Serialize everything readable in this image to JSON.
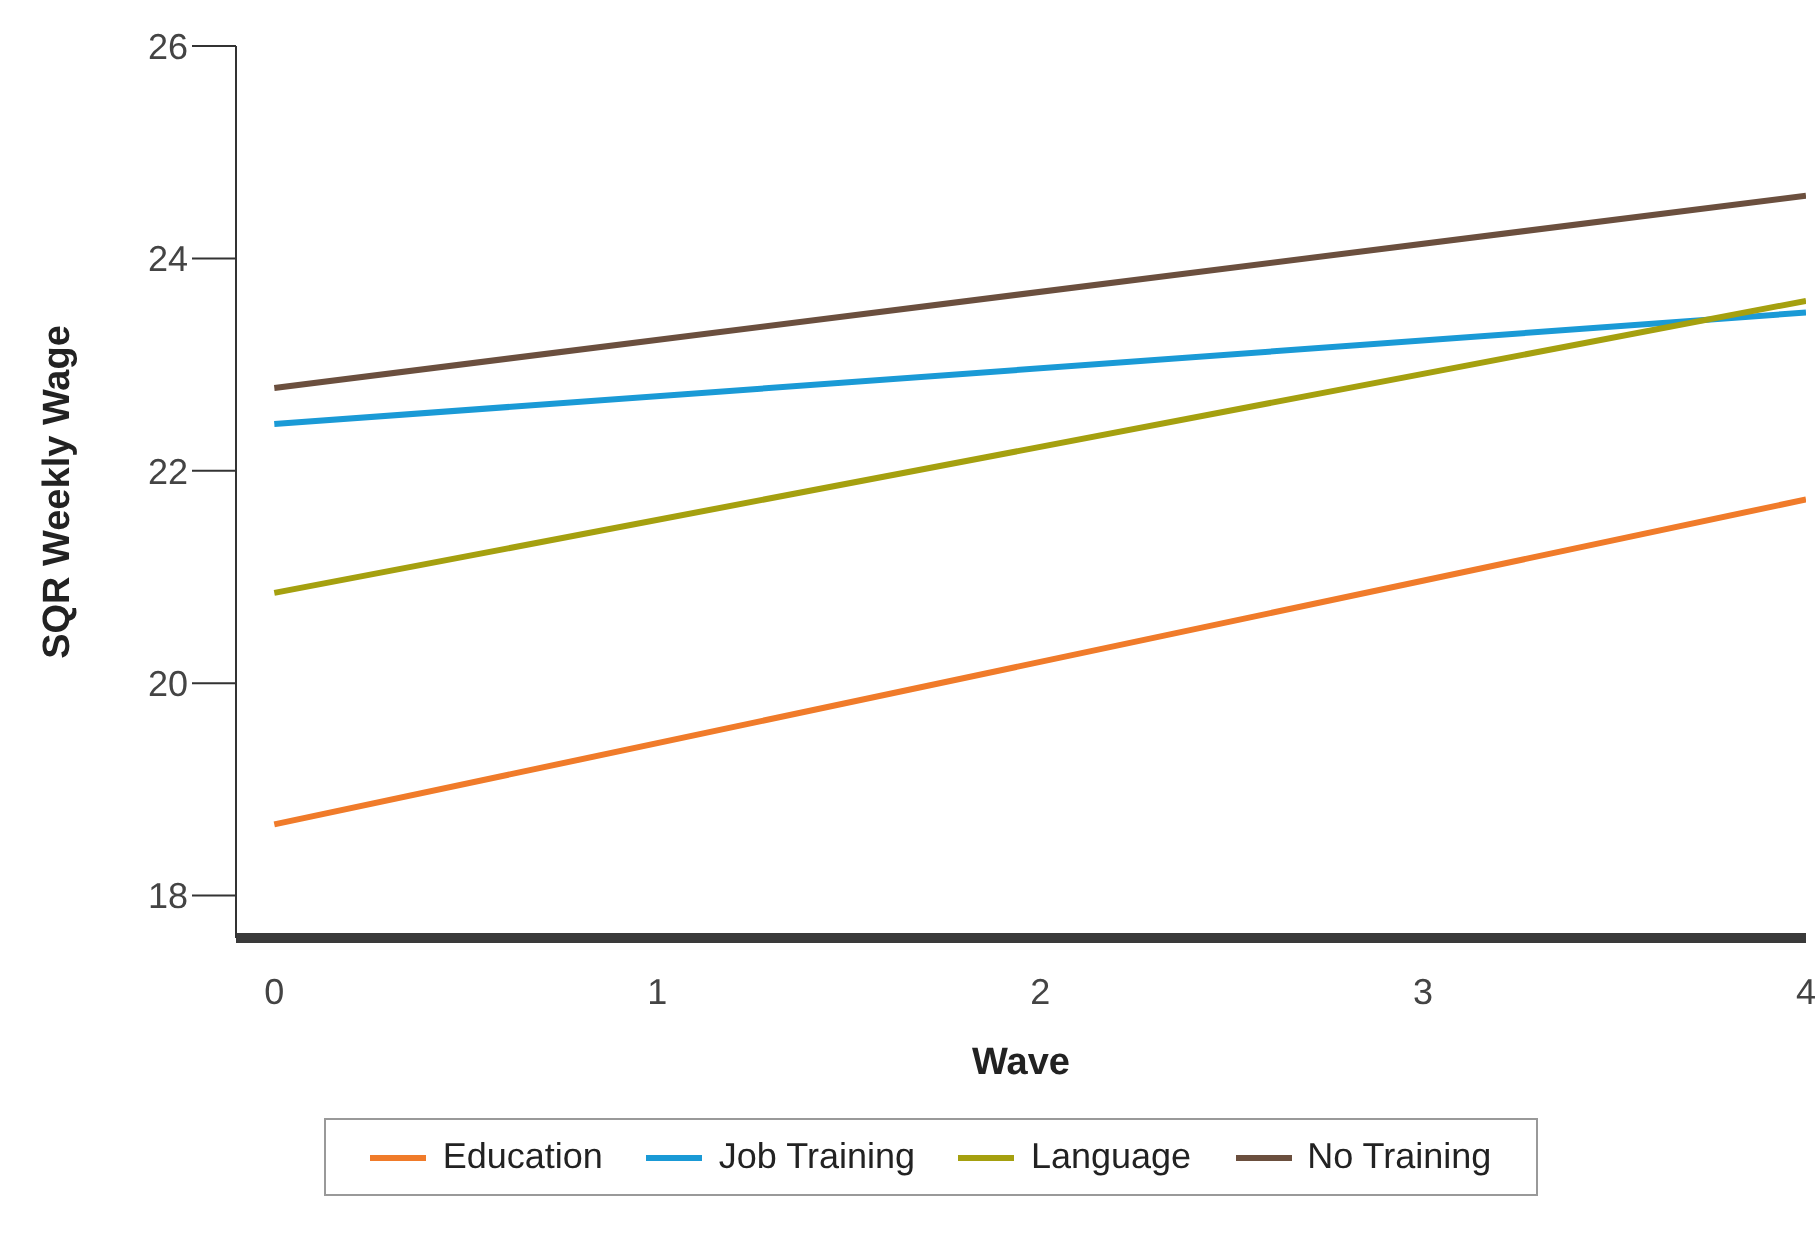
{
  "chart_data": {
    "type": "line",
    "xlabel": "Wave",
    "ylabel": "SQR Weekly Wage",
    "x": [
      0,
      4
    ],
    "series": [
      {
        "name": "Education",
        "color": "#f07b2a",
        "values": [
          18.67,
          21.73
        ]
      },
      {
        "name": "Job Training",
        "color": "#1a9ad6",
        "values": [
          22.44,
          23.49
        ]
      },
      {
        "name": "Language",
        "color": "#a5a00f",
        "values": [
          20.85,
          23.6
        ]
      },
      {
        "name": "No Training",
        "color": "#6b4f3e",
        "values": [
          22.78,
          24.59
        ]
      }
    ],
    "xlim": [
      -0.1,
      4
    ],
    "xticks": [
      0,
      1,
      2,
      3,
      4
    ],
    "ylim": [
      17.6,
      26
    ],
    "yticks": [
      18,
      20,
      22,
      24,
      26
    ],
    "grid": false,
    "legend": "bottom",
    "marker": "none",
    "line_style": "solid"
  }
}
